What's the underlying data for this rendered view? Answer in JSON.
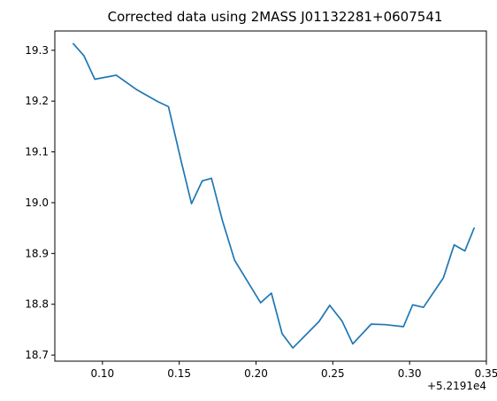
{
  "chart_data": {
    "type": "line",
    "title": "Corrected data using 2MASS J01132281+0607541",
    "xlabel": "",
    "ylabel": "",
    "x_offset_label": "+5.2191e4",
    "x_offset_value": 52191,
    "xlim": [
      0.069,
      0.35
    ],
    "ylim": [
      18.688,
      19.338
    ],
    "x_ticks": [
      {
        "value": 0.1,
        "label": "0.10"
      },
      {
        "value": 0.15,
        "label": "0.15"
      },
      {
        "value": 0.2,
        "label": "0.20"
      },
      {
        "value": 0.25,
        "label": "0.25"
      },
      {
        "value": 0.3,
        "label": "0.30"
      },
      {
        "value": 0.35,
        "label": "0.35"
      }
    ],
    "y_ticks": [
      {
        "value": 18.7,
        "label": "18.7"
      },
      {
        "value": 18.8,
        "label": "18.8"
      },
      {
        "value": 18.9,
        "label": "18.9"
      },
      {
        "value": 19.0,
        "label": "19.0"
      },
      {
        "value": 19.1,
        "label": "19.1"
      },
      {
        "value": 19.2,
        "label": "19.2"
      },
      {
        "value": 19.3,
        "label": "19.3"
      }
    ],
    "grid": false,
    "legend": "none",
    "series": [
      {
        "color": "#1f77b4",
        "x": [
          0.081,
          0.088,
          0.095,
          0.109,
          0.122,
          0.136,
          0.143,
          0.151,
          0.158,
          0.165,
          0.171,
          0.178,
          0.186,
          0.203,
          0.21,
          0.217,
          0.224,
          0.241,
          0.248,
          0.256,
          0.263,
          0.275,
          0.284,
          0.296,
          0.302,
          0.309,
          0.322,
          0.329,
          0.336,
          0.342
        ],
        "y": [
          19.313,
          19.289,
          19.243,
          19.251,
          19.223,
          19.199,
          19.189,
          19.085,
          18.998,
          19.043,
          19.048,
          18.966,
          18.887,
          18.803,
          18.822,
          18.742,
          18.714,
          18.766,
          18.798,
          18.767,
          18.722,
          18.761,
          18.76,
          18.756,
          18.799,
          18.794,
          18.852,
          18.917,
          18.905,
          18.95
        ]
      }
    ]
  }
}
